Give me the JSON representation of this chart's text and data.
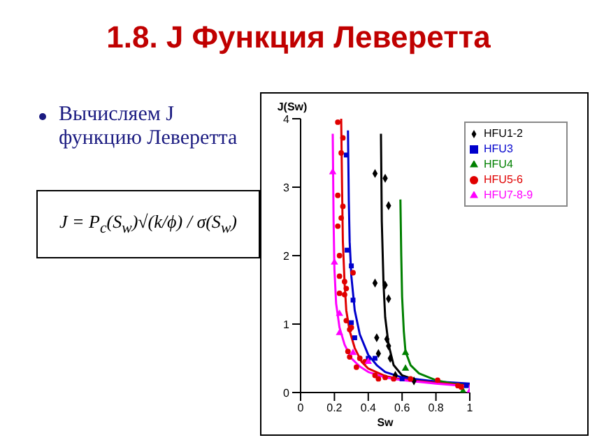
{
  "chart_data": {
    "type": "scatter",
    "title": "1.8. J Функция Леверетта",
    "annotations": [
      "Вычисляем J функцию Леверетта",
      "J = P$_{c}$(S$_{w}$)√(k/ϕ) / σ(S$_{w}$)"
    ],
    "xlabel": "Sw",
    "ylabel": "J(Sw)",
    "xlim": [
      0,
      1
    ],
    "xticks": [
      0,
      0.2,
      0.4,
      0.6,
      0.8,
      1
    ],
    "ylim": [
      0,
      4
    ],
    "yticks": [
      0,
      1,
      2,
      3,
      4
    ],
    "grid": false,
    "legend": "top right",
    "series": [
      {
        "type": "scatter",
        "name": "HFU1-2",
        "color": "#000000",
        "marker": "diamond",
        "x": [
          0.44,
          0.5,
          0.52,
          0.44,
          0.5,
          0.52,
          0.45,
          0.46,
          0.51,
          0.52,
          0.53,
          0.56,
          0.6,
          0.67
        ],
        "values": [
          3.2,
          3.13,
          2.73,
          1.6,
          1.57,
          1.37,
          0.8,
          0.57,
          0.78,
          0.68,
          0.5,
          0.25,
          null,
          0.17
        ]
      },
      {
        "type": "scatter",
        "name": "HFU3",
        "color": "#0000cc",
        "marker": "square",
        "x": [
          0.27,
          0.275,
          0.3,
          0.31,
          0.3,
          0.32,
          0.4,
          0.44,
          0.6,
          0.97,
          0.98
        ],
        "values": [
          3.47,
          2.08,
          1.85,
          1.35,
          1.02,
          0.8,
          0.5,
          0.5,
          0.2,
          null,
          0.1
        ]
      },
      {
        "type": "scatter",
        "name": "HFU4",
        "color": "#008000",
        "marker": "triangle",
        "x": [
          0.62,
          0.62,
          0.96
        ],
        "values": [
          0.58,
          0.35,
          0.02
        ]
      },
      {
        "type": "scatter",
        "name": "HFU5-6",
        "color": "#e00000",
        "marker": "circle",
        "x": [
          0.22,
          0.24,
          0.25,
          0.24,
          0.25,
          0.22,
          0.22,
          0.23,
          0.23,
          0.23,
          0.26,
          0.27,
          0.26,
          0.31,
          0.27,
          0.28,
          0.29,
          0.3,
          0.28,
          0.29,
          0.33,
          0.35,
          0.38,
          0.44,
          0.46,
          0.5,
          0.55,
          0.65,
          0.81,
          0.93,
          0.95
        ],
        "values": [
          3.95,
          3.5,
          3.72,
          2.55,
          2.72,
          2.88,
          2.43,
          2.0,
          1.45,
          1.7,
          1.62,
          1.52,
          1.43,
          1.75,
          1.05,
          null,
          0.92,
          0.95,
          0.6,
          0.52,
          0.37,
          0.5,
          0.45,
          0.25,
          0.2,
          0.22,
          0.2,
          0.2,
          0.18,
          0.1,
          0.08
        ]
      },
      {
        "type": "scatter",
        "name": "HFU7-8-9",
        "color": "#ff00ff",
        "marker": "triangle",
        "x": [
          0.19,
          0.2,
          0.23,
          0.23,
          0.31,
          0.4,
          1.0
        ],
        "values": [
          3.22,
          1.9,
          1.15,
          0.87,
          0.58,
          0.45,
          0.02
        ]
      },
      {
        "type": "line",
        "color": "#000000",
        "x": [
          0.475,
          0.48,
          0.49,
          0.5,
          0.52,
          0.55,
          0.6,
          0.7,
          0.8,
          1
        ],
        "values": [
          3.78,
          2.5,
          1.6,
          1.1,
          0.7,
          0.4,
          0.25,
          0.17,
          0.14,
          0.1
        ]
      },
      {
        "type": "line",
        "color": "#0000cc",
        "x": [
          0.28,
          0.285,
          0.29,
          0.3,
          0.32,
          0.35,
          0.4,
          0.45,
          0.5,
          0.6,
          0.8,
          1
        ],
        "values": [
          3.83,
          2.8,
          2.2,
          1.7,
          1.2,
          0.85,
          0.55,
          0.4,
          0.3,
          0.22,
          0.16,
          0.13
        ]
      },
      {
        "type": "line",
        "color": "#008000",
        "x": [
          0.59,
          0.595,
          0.6,
          0.61,
          0.62,
          0.65,
          0.7,
          0.8,
          0.9,
          1
        ],
        "values": [
          2.82,
          2.0,
          1.4,
          0.9,
          0.6,
          0.4,
          0.28,
          0.18,
          0.13,
          0.1
        ]
      },
      {
        "type": "line",
        "color": "#e00000",
        "x": [
          0.24,
          0.245,
          0.25,
          0.26,
          0.27,
          0.29,
          0.32,
          0.36,
          0.4,
          0.5,
          0.6,
          0.8,
          1
        ],
        "values": [
          4.0,
          3.0,
          2.2,
          1.6,
          1.2,
          0.9,
          0.65,
          0.45,
          0.35,
          0.24,
          0.19,
          0.14,
          0.1
        ]
      },
      {
        "type": "line",
        "color": "#ff00ff",
        "x": [
          0.19,
          0.195,
          0.2,
          0.21,
          0.23,
          0.26,
          0.3,
          0.35,
          0.4,
          0.5,
          0.6,
          0.8,
          1
        ],
        "values": [
          3.78,
          2.5,
          1.8,
          1.3,
          0.95,
          0.7,
          0.5,
          0.38,
          0.3,
          0.22,
          0.18,
          0.13,
          0.09
        ]
      }
    ]
  }
}
